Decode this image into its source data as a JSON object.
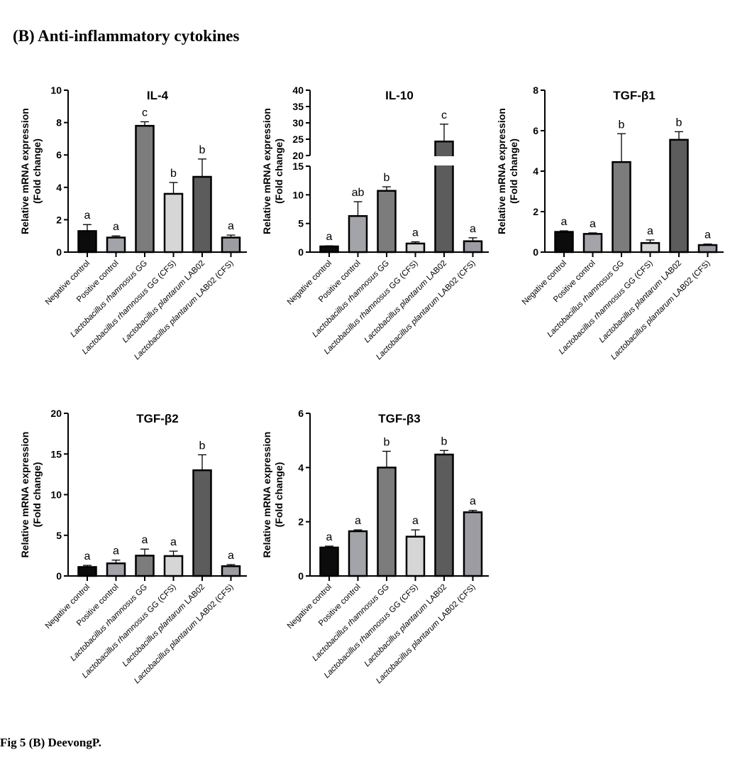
{
  "heading": "(B) Anti-inflammatory cytokines",
  "footer": "Fig 5 (B) DeevongP.",
  "ylabel_line1": "Relative mRNA expression",
  "ylabel_line2": "(Fold change)",
  "categories": [
    {
      "italic": "",
      "normal": "Negative control"
    },
    {
      "italic": "",
      "normal": "Positive control"
    },
    {
      "italic": "Lactobacillus rhamnosus",
      "normal": " GG"
    },
    {
      "italic": "Lactobacillus rhamnosus",
      "normal": " GG (CFS)"
    },
    {
      "italic": "Lactobacillus plantarum",
      "normal": " LAB02"
    },
    {
      "italic": "Lactobacillus plantarum",
      "normal": " LAB02 (CFS)"
    }
  ],
  "bar_colors": [
    "#0c0c0c",
    "#a3a3aa",
    "#7c7c7c",
    "#d6d6d6",
    "#5c5c5c",
    "#9c9ca2"
  ],
  "chart_data": [
    {
      "type": "bar",
      "title": "IL-4",
      "ylim": [
        0,
        10
      ],
      "yticks": [
        0,
        2,
        4,
        6,
        8,
        10
      ],
      "values": [
        1.3,
        0.9,
        7.8,
        3.6,
        4.65,
        0.9
      ],
      "errors": [
        0.4,
        0.1,
        0.25,
        0.7,
        1.1,
        0.15
      ],
      "letters": [
        "a",
        "a",
        "c",
        "b",
        "b",
        "a"
      ]
    },
    {
      "type": "bar",
      "title": "IL-10",
      "ylim": [
        0,
        40
      ],
      "axis_break": [
        15,
        20
      ],
      "yticks": [
        0,
        5,
        10,
        15,
        20,
        25,
        30,
        35,
        40
      ],
      "values": [
        1.0,
        6.3,
        10.7,
        1.5,
        24.3,
        1.9
      ],
      "errors": [
        0.1,
        2.5,
        0.7,
        0.3,
        5.3,
        0.6
      ],
      "letters": [
        "a",
        "ab",
        "b",
        "a",
        "c",
        "a"
      ]
    },
    {
      "type": "bar",
      "title": "TGF-β1",
      "ylim": [
        0,
        8
      ],
      "yticks": [
        0,
        2,
        4,
        6,
        8
      ],
      "values": [
        1.0,
        0.9,
        4.45,
        0.45,
        5.55,
        0.35
      ],
      "errors": [
        0.05,
        0.05,
        1.4,
        0.15,
        0.4,
        0.05
      ],
      "letters": [
        "a",
        "a",
        "b",
        "a",
        "b",
        "a"
      ]
    },
    {
      "type": "bar",
      "title": "TGF-β2",
      "ylim": [
        0,
        20
      ],
      "yticks": [
        0,
        5,
        10,
        15,
        20
      ],
      "values": [
        1.1,
        1.55,
        2.5,
        2.45,
        13.0,
        1.2
      ],
      "errors": [
        0.2,
        0.4,
        0.8,
        0.6,
        1.9,
        0.2
      ],
      "letters": [
        "a",
        "a",
        "a",
        "a",
        "b",
        "a"
      ]
    },
    {
      "type": "bar",
      "title": "TGF-β3",
      "ylim": [
        0,
        6
      ],
      "yticks": [
        0,
        2,
        4,
        6
      ],
      "values": [
        1.05,
        1.65,
        4.0,
        1.45,
        4.48,
        2.35
      ],
      "errors": [
        0.05,
        0.05,
        0.6,
        0.25,
        0.15,
        0.07
      ],
      "letters": [
        "a",
        "a",
        "b",
        "a",
        "b",
        "a"
      ]
    }
  ]
}
